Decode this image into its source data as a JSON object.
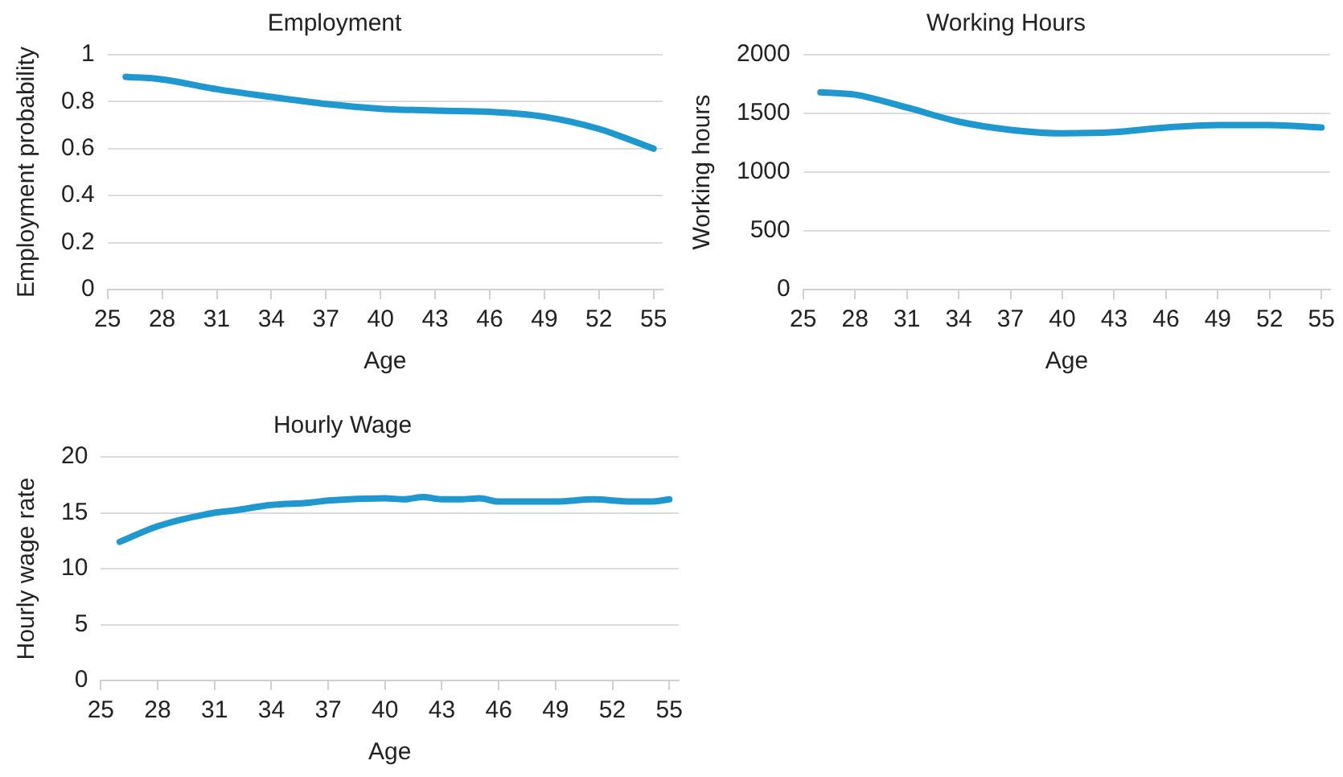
{
  "chart_data": [
    {
      "type": "line",
      "title": "Employment",
      "xlabel": "Age",
      "ylabel": "Employment probability",
      "x": [
        26,
        28,
        31,
        34,
        37,
        40,
        43,
        46,
        49,
        52,
        55
      ],
      "series": [
        {
          "color": "#1f97cf",
          "values": [
            0.906,
            0.895,
            0.853,
            0.82,
            0.79,
            0.77,
            0.762,
            0.757,
            0.736,
            0.684,
            0.6
          ]
        }
      ],
      "xlim": [
        25,
        55.5
      ],
      "xticks": [
        25,
        28,
        31,
        34,
        37,
        40,
        43,
        46,
        49,
        52,
        55
      ],
      "ylim": [
        0,
        1
      ],
      "yticks": [
        0,
        0.2,
        0.4,
        0.6,
        0.8,
        1
      ],
      "grid": "y",
      "marker": "none",
      "line_style": "solid"
    },
    {
      "type": "line",
      "title": "Working Hours",
      "xlabel": "Age",
      "ylabel": "Working hours",
      "x": [
        26,
        28,
        31,
        34,
        37,
        40,
        43,
        46,
        49,
        52,
        55
      ],
      "series": [
        {
          "color": "#1f97cf",
          "values": [
            1680,
            1660,
            1550,
            1430,
            1360,
            1330,
            1340,
            1380,
            1400,
            1400,
            1380
          ]
        }
      ],
      "xlim": [
        25,
        55.5
      ],
      "xticks": [
        25,
        28,
        31,
        34,
        37,
        40,
        43,
        46,
        49,
        52,
        55
      ],
      "ylim": [
        0,
        2000
      ],
      "yticks": [
        0,
        500,
        1000,
        1500,
        2000
      ],
      "grid": "y",
      "marker": "none",
      "line_style": "solid"
    },
    {
      "type": "line",
      "title": "Hourly Wage",
      "xlabel": "Age",
      "ylabel": "Hourly wage rate",
      "x": [
        26,
        28,
        31,
        32,
        34,
        36,
        37,
        40,
        41,
        42,
        43,
        44,
        45,
        46,
        49,
        51,
        53,
        54,
        55
      ],
      "series": [
        {
          "color": "#1f97cf",
          "values": [
            12.4,
            13.8,
            15.0,
            15.2,
            15.7,
            15.9,
            16.1,
            16.3,
            16.2,
            16.4,
            16.2,
            16.2,
            16.3,
            16.0,
            16.0,
            16.2,
            16.0,
            16.0,
            16.2
          ]
        }
      ],
      "xlim": [
        25,
        55.5
      ],
      "xticks": [
        25,
        28,
        31,
        34,
        37,
        40,
        43,
        46,
        49,
        52,
        55
      ],
      "ylim": [
        0,
        20
      ],
      "yticks": [
        0,
        5,
        10,
        15,
        20
      ],
      "grid": "y",
      "marker": "none",
      "line_style": "solid"
    }
  ]
}
